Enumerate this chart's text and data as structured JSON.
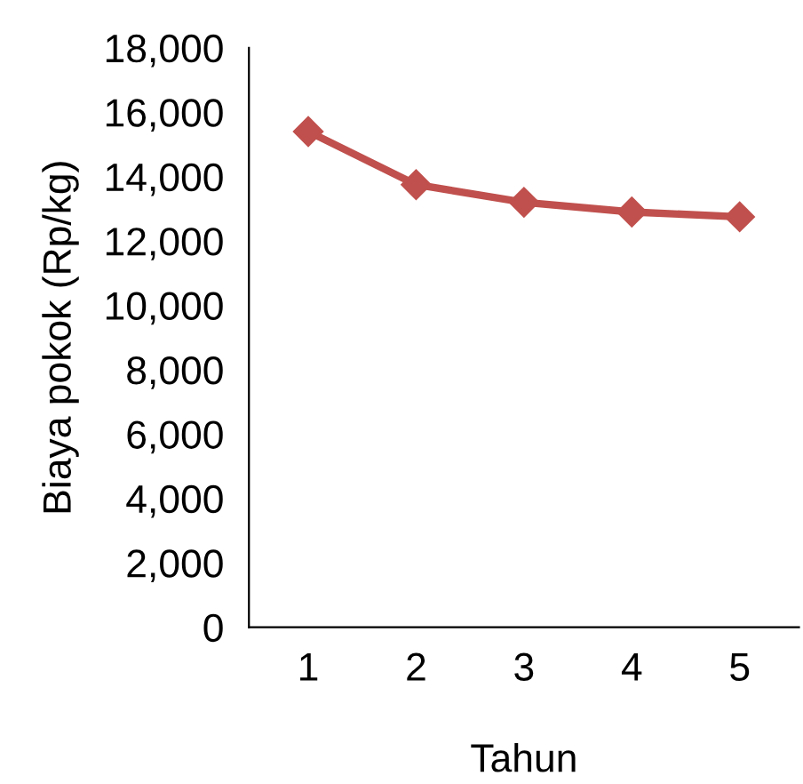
{
  "chart_data": {
    "type": "line",
    "xlabel": "Tahun",
    "ylabel": "Biaya pokok (Rp/kg)",
    "categories": [
      "1",
      "2",
      "3",
      "4",
      "5"
    ],
    "series": [
      {
        "color": "#c0504d",
        "values": [
          15400,
          13750,
          13200,
          12900,
          12750
        ]
      }
    ],
    "ylim": [
      0,
      18000
    ],
    "yticks": [
      {
        "value": 0,
        "label": "0"
      },
      {
        "value": 2000,
        "label": "2,000"
      },
      {
        "value": 4000,
        "label": "4,000"
      },
      {
        "value": 6000,
        "label": "6,000"
      },
      {
        "value": 8000,
        "label": "8,000"
      },
      {
        "value": 10000,
        "label": "10,000"
      },
      {
        "value": 12000,
        "label": "12,000"
      },
      {
        "value": 14000,
        "label": "14,000"
      },
      {
        "value": 16000,
        "label": "16,000"
      },
      {
        "value": 18000,
        "label": "18,000"
      }
    ],
    "grid": false,
    "legend": false,
    "marker": "diamond",
    "line_style": "solid"
  }
}
